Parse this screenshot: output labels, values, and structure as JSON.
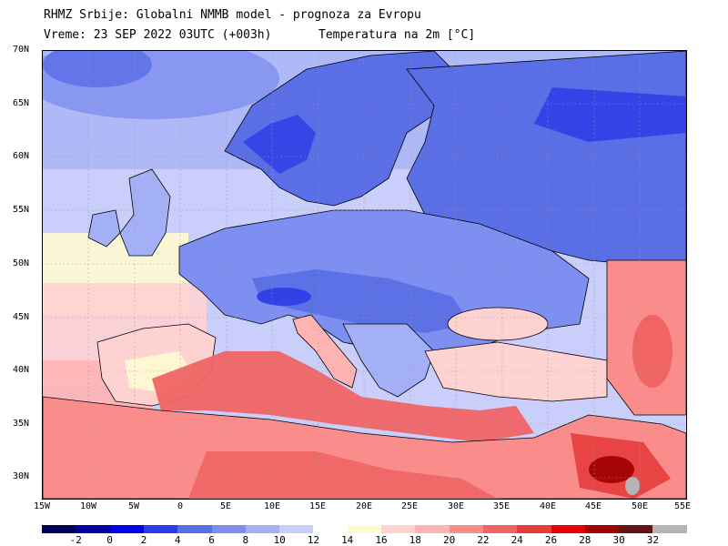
{
  "header": {
    "line1": "RHMZ Srbije: Globalni NMMB model - prognoza za Evropu",
    "line2_left": "Vreme: 23 SEP 2022 03UTC (+003h)",
    "line2_right": "Temperatura na 2m [°C]"
  },
  "axes": {
    "lat_labels": [
      "70N",
      "65N",
      "60N",
      "55N",
      "50N",
      "45N",
      "40N",
      "35N",
      "30N"
    ],
    "lon_labels": [
      "15W",
      "10W",
      "5W",
      "0",
      "5E",
      "10E",
      "15E",
      "20E",
      "25E",
      "30E",
      "35E",
      "40E",
      "45E",
      "50E",
      "55E"
    ]
  },
  "colorbar": {
    "labels": [
      "-2",
      "0",
      "2",
      "4",
      "6",
      "8",
      "10",
      "12",
      "14",
      "16",
      "18",
      "20",
      "22",
      "24",
      "26",
      "28",
      "30",
      "32"
    ],
    "colors": [
      "#00005a",
      "#0000a0",
      "#0000e6",
      "#2d3ce6",
      "#5a6ee6",
      "#7d8ff0",
      "#a4b0f5",
      "#c9cefa",
      "#ffffff",
      "#fffbd2",
      "#ffd2d2",
      "#ffb4b4",
      "#fa8c8c",
      "#f06464",
      "#e63c3c",
      "#e60000",
      "#a00000",
      "#641414",
      "#b4b4b4"
    ]
  },
  "map": {
    "ocean_color": "#cfd3f5",
    "land_cold_color": "#5a6ee6",
    "land_hot_color": "#f06464",
    "graticule_color": "#9a9a9a",
    "border_color": "#000000"
  }
}
